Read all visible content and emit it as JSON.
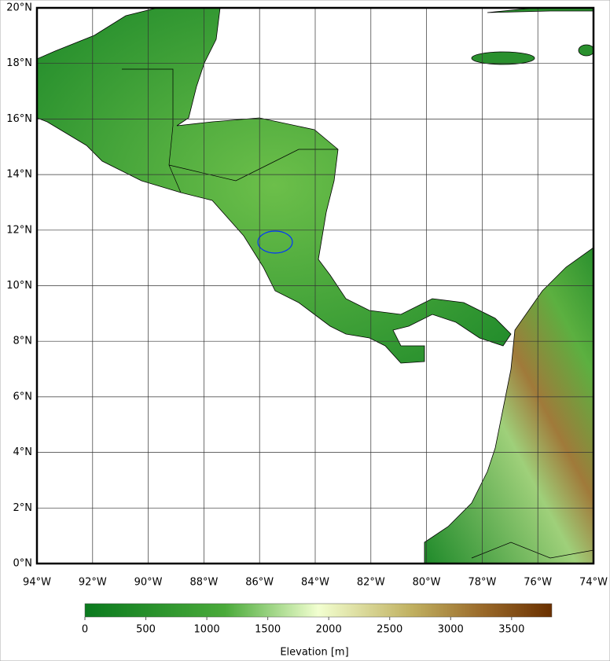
{
  "map": {
    "xlim": [
      -94,
      -74
    ],
    "ylim": [
      0,
      20
    ],
    "xticks": [
      {
        "value": -94,
        "label": "94°W"
      },
      {
        "value": -92,
        "label": "92°W"
      },
      {
        "value": -90,
        "label": "90°W"
      },
      {
        "value": -88,
        "label": "88°W"
      },
      {
        "value": -86,
        "label": "86°W"
      },
      {
        "value": -84,
        "label": "84°W"
      },
      {
        "value": -82,
        "label": "82°W"
      },
      {
        "value": -80,
        "label": "80°W"
      },
      {
        "value": -78,
        "label": "78°W"
      },
      {
        "value": -76,
        "label": "76°W"
      },
      {
        "value": -74,
        "label": "74°W"
      }
    ],
    "yticks": [
      {
        "value": 0,
        "label": "0°N"
      },
      {
        "value": 2,
        "label": "2°N"
      },
      {
        "value": 4,
        "label": "4°N"
      },
      {
        "value": 6,
        "label": "6°N"
      },
      {
        "value": 8,
        "label": "8°N"
      },
      {
        "value": 10,
        "label": "10°N"
      },
      {
        "value": 12,
        "label": "12°N"
      },
      {
        "value": 14,
        "label": "14°N"
      },
      {
        "value": 16,
        "label": "16°N"
      },
      {
        "value": 18,
        "label": "18°N"
      },
      {
        "value": 20,
        "label": "20°N"
      }
    ],
    "grid": true,
    "colorbar": {
      "label": "Elevation [m]",
      "lim": [
        0,
        3830
      ],
      "ticks": [
        0,
        500,
        1000,
        1500,
        2000,
        2500,
        3000,
        3500
      ]
    }
  }
}
